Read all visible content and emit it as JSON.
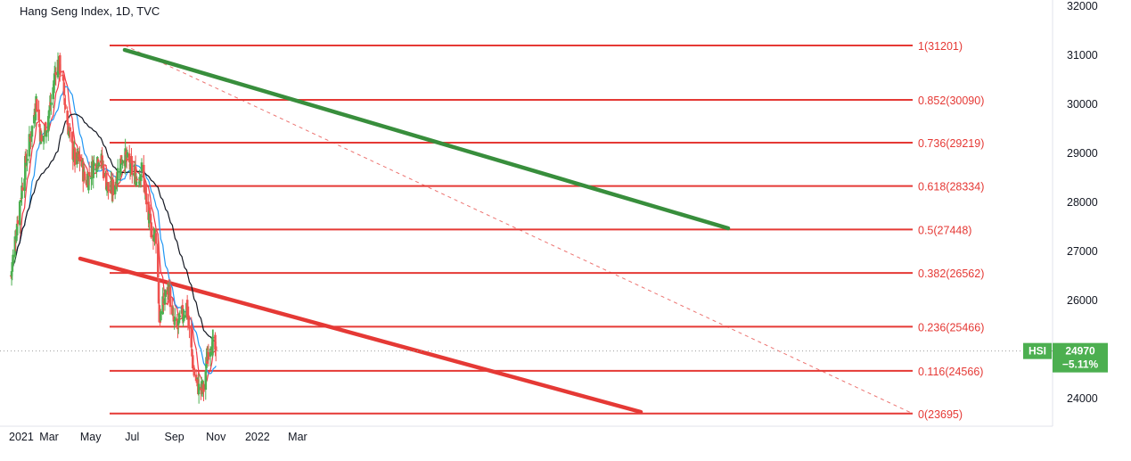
{
  "header": {
    "title": "Hang Seng Index, 1D, TVC"
  },
  "chart_data": {
    "type": "candlestick",
    "title": "Hang Seng Index, 1D, TVC",
    "y_axis": {
      "min": 23500,
      "max": 32200,
      "ticks": [
        "32000",
        "31000",
        "30000",
        "29000",
        "28000",
        "27000",
        "26000",
        "25000",
        "24000"
      ],
      "tick_values": [
        32000,
        31000,
        30000,
        29000,
        28000,
        27000,
        26000,
        25000,
        24000
      ]
    },
    "x_axis": {
      "ticks": [
        "2021",
        "Mar",
        "May",
        "Jul",
        "Sep",
        "Nov",
        "2022",
        "Mar"
      ]
    },
    "fib_levels": [
      {
        "ratio": 1,
        "value": 31201,
        "label": "1(31201)"
      },
      {
        "ratio": 0.852,
        "value": 30090,
        "label": "0.852(30090)"
      },
      {
        "ratio": 0.736,
        "value": 29219,
        "label": "0.736(29219)"
      },
      {
        "ratio": 0.618,
        "value": 28334,
        "label": "0.618(28334)"
      },
      {
        "ratio": 0.5,
        "value": 27448,
        "label": "0.5(27448)"
      },
      {
        "ratio": 0.382,
        "value": 26562,
        "label": "0.382(26562)"
      },
      {
        "ratio": 0.236,
        "value": 25466,
        "label": "0.236(25466)"
      },
      {
        "ratio": 0.116,
        "value": 24566,
        "label": "0.116(24566)"
      },
      {
        "ratio": 0,
        "value": 23695,
        "label": "0(23695)"
      }
    ],
    "price_badge": {
      "symbol": "HSI",
      "price": "24970",
      "change": "−5.11%",
      "value": 24970
    },
    "colors": {
      "fib": "#e53935",
      "up": "#4caf50",
      "down": "#ef5350",
      "ma_fast": "#f23645",
      "ma_mid": "#2196f3",
      "ma_slow": "#131722",
      "trend_upper": "#388e3c",
      "trend_lower": "#e53935",
      "badge": "#4caf50"
    },
    "grid": false
  }
}
